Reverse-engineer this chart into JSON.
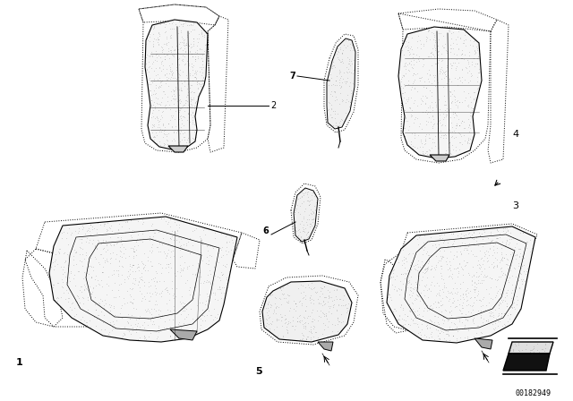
{
  "bg_color": "#ffffff",
  "line_color": "#000000",
  "fig_width": 6.4,
  "fig_height": 4.48,
  "dpi": 100,
  "diagram_number": "00182949"
}
